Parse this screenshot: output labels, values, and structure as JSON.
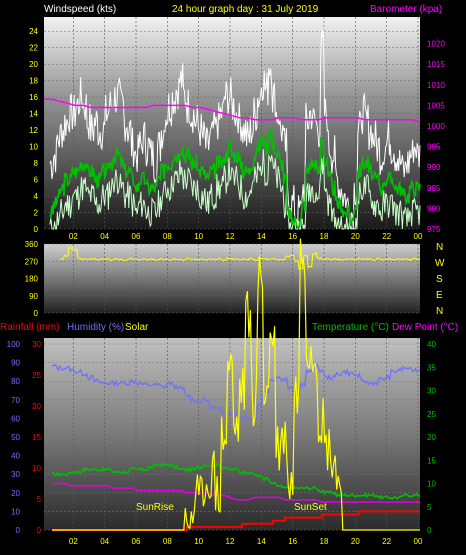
{
  "header": {
    "windspeed_label": "Windspeed (kts)",
    "title": "24 hour graph day : 31 July 2019",
    "barometer_label": "Barometer (kpa)"
  },
  "middle": {
    "direction_letters": [
      "N",
      "W",
      "S",
      "E",
      "N"
    ]
  },
  "bottom": {
    "rainfall_label": "Rainfall (mm)",
    "humidity_label": "Humidity (%)",
    "solar_label": "Solar",
    "temperature_label": "Temperature (°C)",
    "dewpoint_label": "Dew Point (°C)",
    "sunrise_label": "SunRise",
    "sunset_label": "SunSet"
  },
  "colors": {
    "windspeed_text": "#ffffff",
    "title": "#ffff00",
    "barometer": "#ff00ff",
    "wind_max": "#ffffff",
    "wind_avg": "#00c000",
    "wind_min": "#c8ffc8",
    "direction": "#ffff00",
    "rainfall": "#ff0000",
    "humidity": "#7070ff",
    "solar": "#ffff00",
    "temperature": "#00c000",
    "dewpoint": "#e000e0",
    "tick_text": "#ffff00"
  },
  "chart_data": [
    {
      "type": "line",
      "name": "wind-barometer",
      "x_ticks": [
        "02",
        "04",
        "06",
        "08",
        "10",
        "12",
        "14",
        "16",
        "18",
        "20",
        "22",
        "00"
      ],
      "ylim_left": [
        0,
        25
      ],
      "y_ticks_left": [
        0,
        2,
        4,
        6,
        8,
        10,
        12,
        14,
        16,
        18,
        20,
        22,
        24
      ],
      "ylim_right": [
        975,
        1025
      ],
      "y_ticks_right": [
        975,
        980,
        985,
        990,
        995,
        1000,
        1005,
        1010,
        1015,
        1020
      ],
      "series": [
        {
          "key": "gust",
          "values": [
            8,
            9,
            11,
            12,
            13,
            14,
            14,
            15,
            16,
            15,
            13,
            12,
            13,
            12,
            12,
            14,
            15,
            16,
            16,
            15,
            13,
            12,
            10,
            9,
            10,
            11,
            10,
            9,
            8,
            10,
            12,
            14,
            15,
            16,
            17,
            18,
            16,
            15,
            14,
            13,
            12,
            11,
            10,
            11,
            12,
            13,
            14,
            16,
            16,
            15,
            14,
            13,
            12,
            11,
            12,
            14,
            16,
            18,
            17,
            20,
            16,
            14,
            12,
            10,
            4,
            3,
            2,
            2,
            5,
            13,
            14,
            13,
            12,
            22,
            14,
            10,
            9,
            6,
            5,
            4,
            3,
            2,
            5,
            12,
            14,
            13,
            12,
            11,
            10,
            9,
            10,
            11,
            10,
            9,
            8,
            7,
            8,
            9,
            10,
            9
          ]
        },
        {
          "key": "avg",
          "values": [
            2,
            3,
            4,
            5,
            6,
            6,
            7,
            7,
            8,
            8,
            7,
            7,
            6,
            6,
            7,
            7,
            8,
            9,
            9,
            8,
            7,
            7,
            6,
            5,
            6,
            6,
            5,
            5,
            5,
            6,
            7,
            8,
            8,
            9,
            9,
            10,
            9,
            9,
            8,
            8,
            7,
            7,
            6,
            7,
            7,
            8,
            8,
            9,
            10,
            9,
            9,
            8,
            7,
            7,
            8,
            9,
            10,
            11,
            10,
            12,
            10,
            9,
            8,
            6,
            2,
            1,
            1,
            1,
            3,
            7,
            8,
            8,
            7,
            11,
            8,
            6,
            5,
            3,
            3,
            2,
            2,
            1,
            3,
            7,
            8,
            8,
            7,
            6,
            6,
            5,
            6,
            6,
            6,
            5,
            5,
            4,
            4,
            5,
            5,
            5
          ]
        },
        {
          "key": "barometer",
          "values": [
            1006.5,
            1006.5,
            1006,
            1005.5,
            1005,
            1005,
            1004.5,
            1004.5,
            1004.5,
            1004.5,
            1004.5,
            1004.5,
            1004.5,
            1004.5,
            1005,
            1005,
            1005,
            1005,
            1005,
            1004.5,
            1004.5,
            1004,
            1003.5,
            1003,
            1002.5,
            1002,
            1002,
            1001.5,
            1001.5,
            1001.5,
            1002,
            1002,
            1002,
            1001.5,
            1001.5,
            1001.5,
            1002,
            1002,
            1002,
            1002,
            1002,
            1001.5,
            1001.5,
            1001.5,
            1001.5,
            1001.5,
            1001.5,
            1001.5,
            1001
          ]
        }
      ]
    },
    {
      "type": "line",
      "name": "wind-direction",
      "ylim": [
        0,
        360
      ],
      "y_ticks": [
        0,
        90,
        180,
        270,
        360
      ],
      "values": [
        280,
        300,
        340,
        330,
        285,
        280,
        278,
        282,
        275,
        280,
        283,
        277,
        281,
        279,
        276,
        284,
        280,
        278,
        282,
        279,
        281,
        277,
        283,
        280,
        278,
        282,
        279,
        275,
        285,
        280,
        277,
        283,
        279,
        281,
        278,
        282,
        276,
        284,
        280,
        279,
        281,
        278,
        283,
        276,
        285,
        282,
        279,
        281,
        278,
        280,
        295,
        300,
        270,
        230,
        300,
        240,
        310,
        285,
        280,
        283,
        279,
        281,
        277,
        282,
        280,
        278,
        284,
        279,
        281,
        277,
        282,
        280,
        279,
        283,
        278,
        281,
        280,
        277,
        284,
        281
      ]
    },
    {
      "type": "line",
      "name": "rain-humidity-solar-temp",
      "ylim_humidity": [
        0,
        100
      ],
      "y_ticks_humidity": [
        0,
        10,
        20,
        30,
        40,
        50,
        60,
        70,
        80,
        90,
        100
      ],
      "ylim_rain": [
        0,
        30
      ],
      "y_ticks_rain": [
        0,
        5,
        10,
        15,
        20,
        25,
        30
      ],
      "ylim_temp": [
        0,
        40
      ],
      "y_ticks_temp": [
        0,
        5,
        10,
        15,
        20,
        25,
        30,
        35,
        40
      ],
      "series": [
        {
          "key": "humidity",
          "values": [
            88,
            87,
            87,
            86,
            85,
            84,
            82,
            80,
            79,
            79,
            79,
            79,
            79,
            80,
            79,
            78,
            78,
            78,
            77,
            79,
            77,
            76,
            72,
            70,
            69,
            70,
            66,
            65,
            63,
            63,
            62,
            61,
            60,
            60,
            68,
            75,
            81,
            82,
            81,
            76,
            73,
            78,
            85,
            88,
            86,
            82,
            82,
            84,
            85,
            84,
            83,
            80,
            79,
            79,
            81,
            82,
            85,
            86,
            87,
            86,
            86
          ]
        },
        {
          "key": "temperature",
          "values": [
            12,
            12,
            12,
            12.5,
            12.5,
            13,
            13,
            13,
            13,
            13,
            12.5,
            12.5,
            12.5,
            13,
            13,
            13,
            13.5,
            14,
            14,
            14,
            13.5,
            13,
            13,
            13,
            13.5,
            14,
            14,
            14,
            13.5,
            13,
            13,
            12.5,
            12.5,
            12,
            11.5,
            11,
            10,
            9.5,
            9,
            9,
            9,
            9,
            9,
            9,
            8.5,
            8,
            8,
            7.5,
            7.5,
            7.5,
            7.5,
            7.5,
            7.5,
            7.5,
            7,
            7,
            7,
            7,
            7.5,
            7.5,
            7.5
          ]
        },
        {
          "key": "dewpoint",
          "values": [
            10,
            10,
            10,
            9.5,
            9.5,
            9.5,
            9.5,
            9.5,
            9.5,
            9.5,
            9,
            9,
            9,
            9,
            8.5,
            8.5,
            8.5,
            8.5,
            8.5,
            8.5,
            8.5,
            8.5,
            8,
            8,
            8,
            8,
            7.5,
            7.5,
            7.5,
            7,
            6.5,
            6.5,
            6.5,
            7,
            7,
            7,
            7,
            7,
            6.5,
            6.5,
            6.5,
            6.5,
            6.5,
            6.5,
            6,
            6,
            6,
            6,
            6,
            6,
            6,
            6,
            6,
            6,
            6,
            6,
            6,
            6,
            6,
            6,
            6
          ]
        },
        {
          "key": "rainfall",
          "values": [
            0,
            0,
            0,
            0,
            0,
            0,
            0,
            0,
            0,
            0,
            0,
            0,
            0,
            0,
            0,
            0,
            0,
            0,
            0,
            0,
            0,
            0,
            0.5,
            0.5,
            0.5,
            0.5,
            0.5,
            0.5,
            0.5,
            0.5,
            0.5,
            1,
            1,
            1,
            1,
            1,
            1.5,
            1.5,
            2,
            2,
            2,
            2,
            2,
            2,
            2.5,
            2.5,
            2.5,
            2.5,
            2.5,
            2.5,
            3,
            3,
            3,
            3,
            3,
            3,
            3,
            3,
            3,
            3,
            3
          ]
        },
        {
          "key": "solar",
          "values": [
            0,
            0,
            0,
            0,
            0,
            0,
            0,
            0,
            0,
            0,
            0,
            0,
            0,
            0,
            0,
            0,
            0,
            0,
            0,
            0,
            0,
            0,
            2,
            4,
            6,
            10,
            12,
            8,
            20,
            35,
            22,
            30,
            46,
            28,
            54,
            30,
            42,
            18,
            20,
            10,
            30,
            60,
            40,
            38,
            24,
            18,
            16,
            10,
            0,
            0,
            0,
            0,
            0,
            0,
            0,
            0,
            0,
            0,
            0,
            0,
            0
          ]
        }
      ]
    }
  ]
}
